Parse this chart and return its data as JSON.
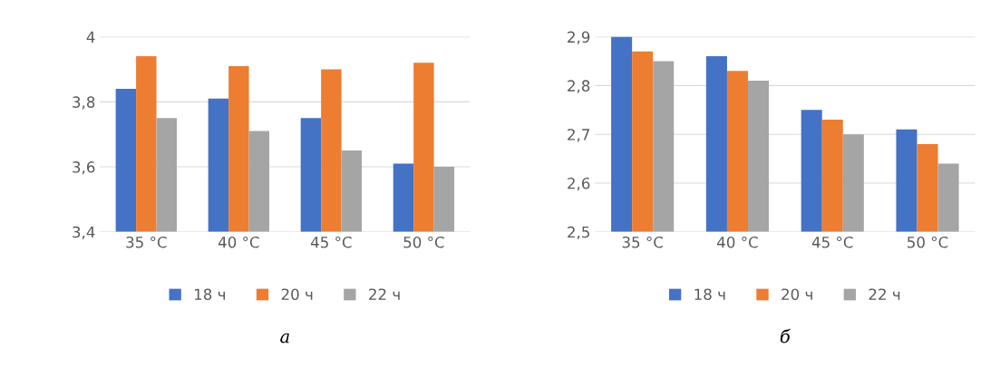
{
  "chart_data": [
    {
      "type": "bar",
      "categories": [
        "35 °C",
        "40 °C",
        "45 °C",
        "50 °C"
      ],
      "series": [
        {
          "name": "18 ч",
          "color": "#4472c4",
          "values": [
            3.84,
            3.81,
            3.75,
            3.61
          ]
        },
        {
          "name": "20 ч",
          "color": "#ed7d31",
          "values": [
            3.94,
            3.91,
            3.9,
            3.92
          ]
        },
        {
          "name": "22 ч",
          "color": "#a5a5a5",
          "values": [
            3.75,
            3.71,
            3.65,
            3.6
          ]
        }
      ],
      "ylim": [
        3.4,
        4.0
      ],
      "yticks": [
        {
          "value": 3.4,
          "label": "3,4"
        },
        {
          "value": 3.6,
          "label": "3,6"
        },
        {
          "value": 3.8,
          "label": "3,8"
        },
        {
          "value": 4.0,
          "label": "4"
        }
      ],
      "grid": "y",
      "legend": "bottom",
      "annotations": [
        "а"
      ]
    },
    {
      "type": "bar",
      "categories": [
        "35 °C",
        "40 °C",
        "45 °C",
        "50 °C"
      ],
      "series": [
        {
          "name": "18 ч",
          "color": "#4472c4",
          "values": [
            2.9,
            2.86,
            2.75,
            2.71
          ]
        },
        {
          "name": "20 ч",
          "color": "#ed7d31",
          "values": [
            2.87,
            2.83,
            2.73,
            2.68
          ]
        },
        {
          "name": "22 ч",
          "color": "#a5a5a5",
          "values": [
            2.85,
            2.81,
            2.7,
            2.64
          ]
        }
      ],
      "ylim": [
        2.5,
        2.9
      ],
      "yticks": [
        {
          "value": 2.5,
          "label": "2,5"
        },
        {
          "value": 2.6,
          "label": "2,6"
        },
        {
          "value": 2.7,
          "label": "2,7"
        },
        {
          "value": 2.8,
          "label": "2,8"
        },
        {
          "value": 2.9,
          "label": "2,9"
        }
      ],
      "grid": "y",
      "legend": "bottom",
      "annotations": [
        "б"
      ]
    }
  ]
}
